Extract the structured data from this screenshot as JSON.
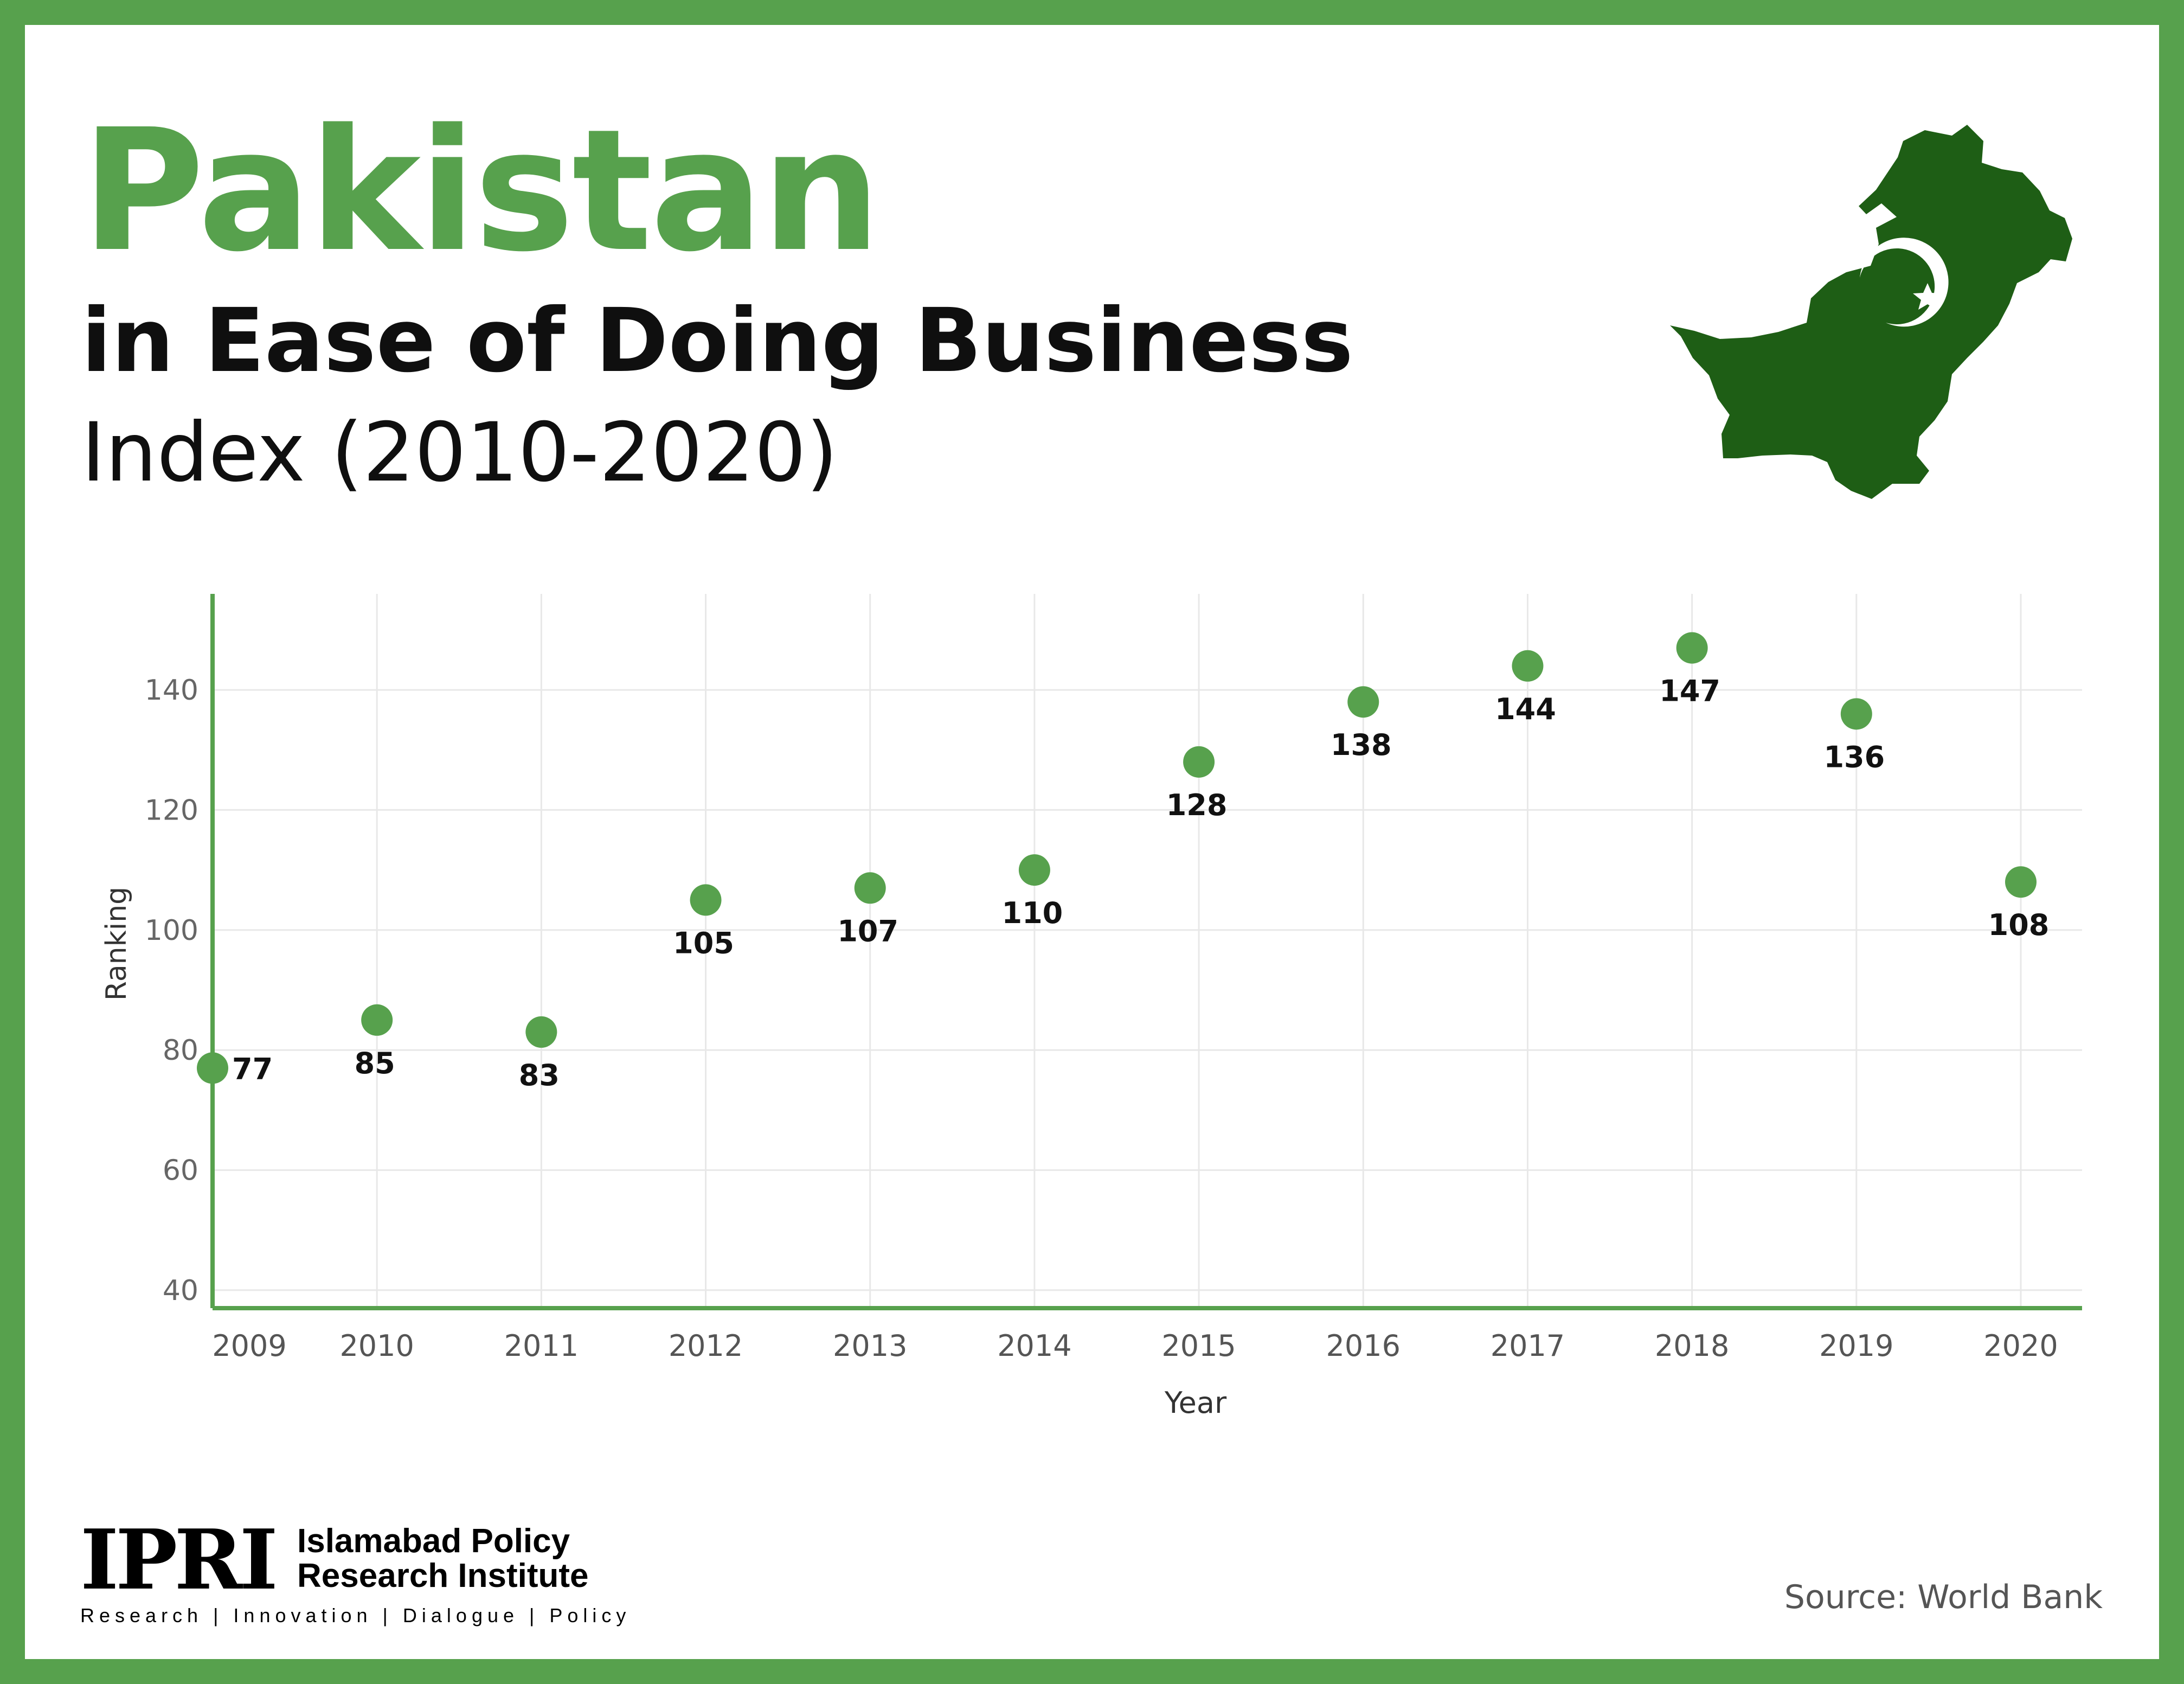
{
  "header": {
    "title": "Pakistan",
    "subtitle": "in Ease of Doing Business",
    "subtitle2": "Index (2010-2020)"
  },
  "colors": {
    "accent": "#57a14d",
    "map": "#1e5e15",
    "text": "#0f0f0f"
  },
  "chart_data": {
    "type": "scatter",
    "xlabel": "Year",
    "ylabel": "Ranking",
    "x": [
      2009,
      2010,
      2011,
      2012,
      2013,
      2014,
      2015,
      2016,
      2017,
      2018,
      2019,
      2020
    ],
    "values": [
      77,
      85,
      83,
      105,
      107,
      110,
      128,
      138,
      144,
      147,
      136,
      108
    ],
    "data_labels": [
      "77",
      "85",
      "83",
      "105",
      "107",
      "110",
      "128",
      "138",
      "144",
      "147",
      "136",
      "108"
    ],
    "x_ticks": [
      "2009",
      "2010",
      "2011",
      "2012",
      "2013",
      "2014",
      "2015",
      "2016",
      "2017",
      "2018",
      "2019",
      "2020"
    ],
    "y_ticks": [
      40,
      60,
      80,
      100,
      120,
      140
    ],
    "ylim": [
      37,
      156
    ],
    "grid": true,
    "legend": "none"
  },
  "footer": {
    "logo_mark": "IPRI",
    "logo_name": "Islamabad Policy\nResearch Institute",
    "logo_tagline": "Research | Innovation | Dialogue | Policy",
    "source": "Source: World Bank"
  }
}
